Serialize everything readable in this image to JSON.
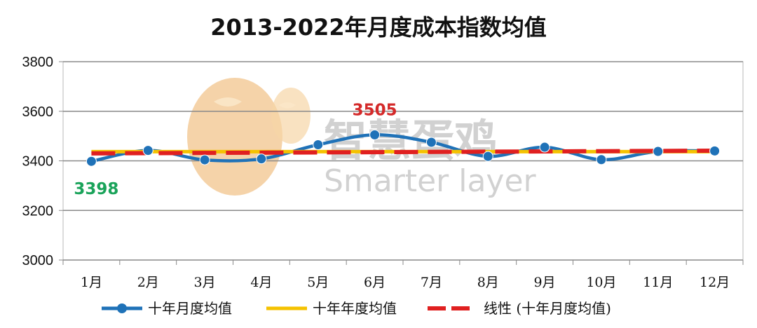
{
  "colors": {
    "monthly": "#1f72b8",
    "average": "#f5c200",
    "trend": "#e02020",
    "min_label": "#1aa35a",
    "max_label": "#d42a2a",
    "logo": "#f1c48c"
  },
  "watermark": {
    "cn": "智慧蛋鸡",
    "en": "Smarter layer"
  },
  "chart_data": {
    "type": "line",
    "title": "2013-2022年月度成本指数均值",
    "categories": [
      "1月",
      "2月",
      "3月",
      "4月",
      "5月",
      "6月",
      "7月",
      "8月",
      "9月",
      "10月",
      "11月",
      "12月"
    ],
    "ylim": [
      3000,
      3800
    ],
    "yticks": [
      3000,
      3200,
      3400,
      3600,
      3800
    ],
    "ytick_labels": [
      "3000",
      "3200",
      "3400",
      "3600",
      "3800"
    ],
    "grid": true,
    "legend_position": "bottom",
    "series": [
      {
        "name": "十年月度均值",
        "style": "line-marker",
        "values": [
          3398,
          3442,
          3404,
          3408,
          3465,
          3505,
          3475,
          3418,
          3455,
          3405,
          3438,
          3440
        ]
      },
      {
        "name": "十年年度均值",
        "style": "line",
        "values": [
          3437,
          3437,
          3437,
          3437,
          3437,
          3437,
          3437,
          3437,
          3437,
          3437,
          3437,
          3437
        ]
      },
      {
        "name": "线性 (十年月度均值)",
        "style": "dashed",
        "values": [
          3430,
          3431,
          3432,
          3433,
          3434,
          3435,
          3436,
          3437,
          3438,
          3439,
          3440,
          3441
        ]
      }
    ],
    "annotations": [
      {
        "text": "3398",
        "month_index": 0,
        "value": 3398,
        "color_key": "min_label"
      },
      {
        "text": "3505",
        "month_index": 5,
        "value": 3505,
        "color_key": "max_label"
      }
    ]
  }
}
